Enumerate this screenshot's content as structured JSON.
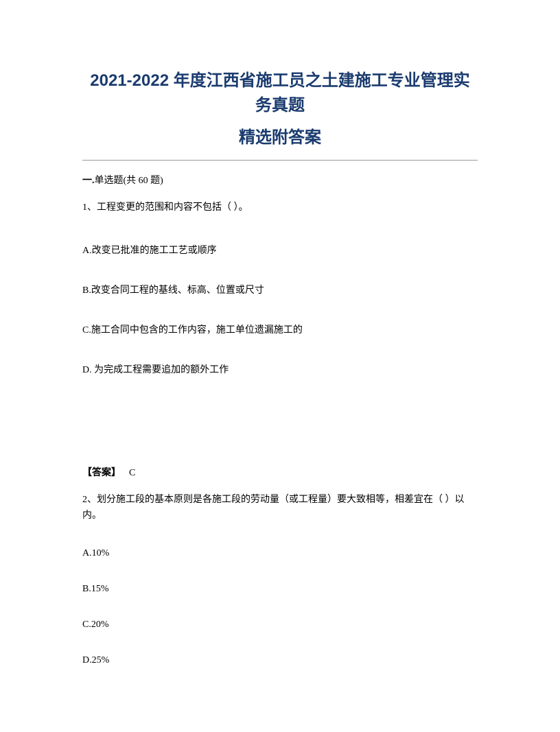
{
  "title_line1": "2021-2022 年度江西省施工员之土建施工专业管理实务真题",
  "title_line2": "精选附答案",
  "section_header_prefix": "一.",
  "section_header_type": "单选题",
  "section_header_count": "(共 60 题)",
  "question1": {
    "text": "1、工程变更的范围和内容不包括（ ）。",
    "options": {
      "A": "A.改变已批准的施工工艺或顺序",
      "B": "B.改变合同工程的基线、标高、位置或尺寸",
      "C": "C.施工合同中包含的工作内容，施工单位遗漏施工的",
      "D": "D. 为完成工程需要追加的额外工作"
    },
    "answer_label": "【答案】",
    "answer_value": "C"
  },
  "question2": {
    "text": "2、划分施工段的基本原则是各施工段的劳动量（或工程量）要大致相等，相差宜在（ ）以内。",
    "options": {
      "A": "A.10%",
      "B": "B.15%",
      "C": "C.20%",
      "D": "D.25%"
    }
  },
  "colors": {
    "title_color": "#1a3b6e",
    "text_color": "#000000",
    "background": "#ffffff",
    "divider": "#999999"
  },
  "typography": {
    "title_fontsize": 24,
    "body_fontsize": 14,
    "title_font": "Microsoft YaHei",
    "body_font": "SimSun"
  }
}
